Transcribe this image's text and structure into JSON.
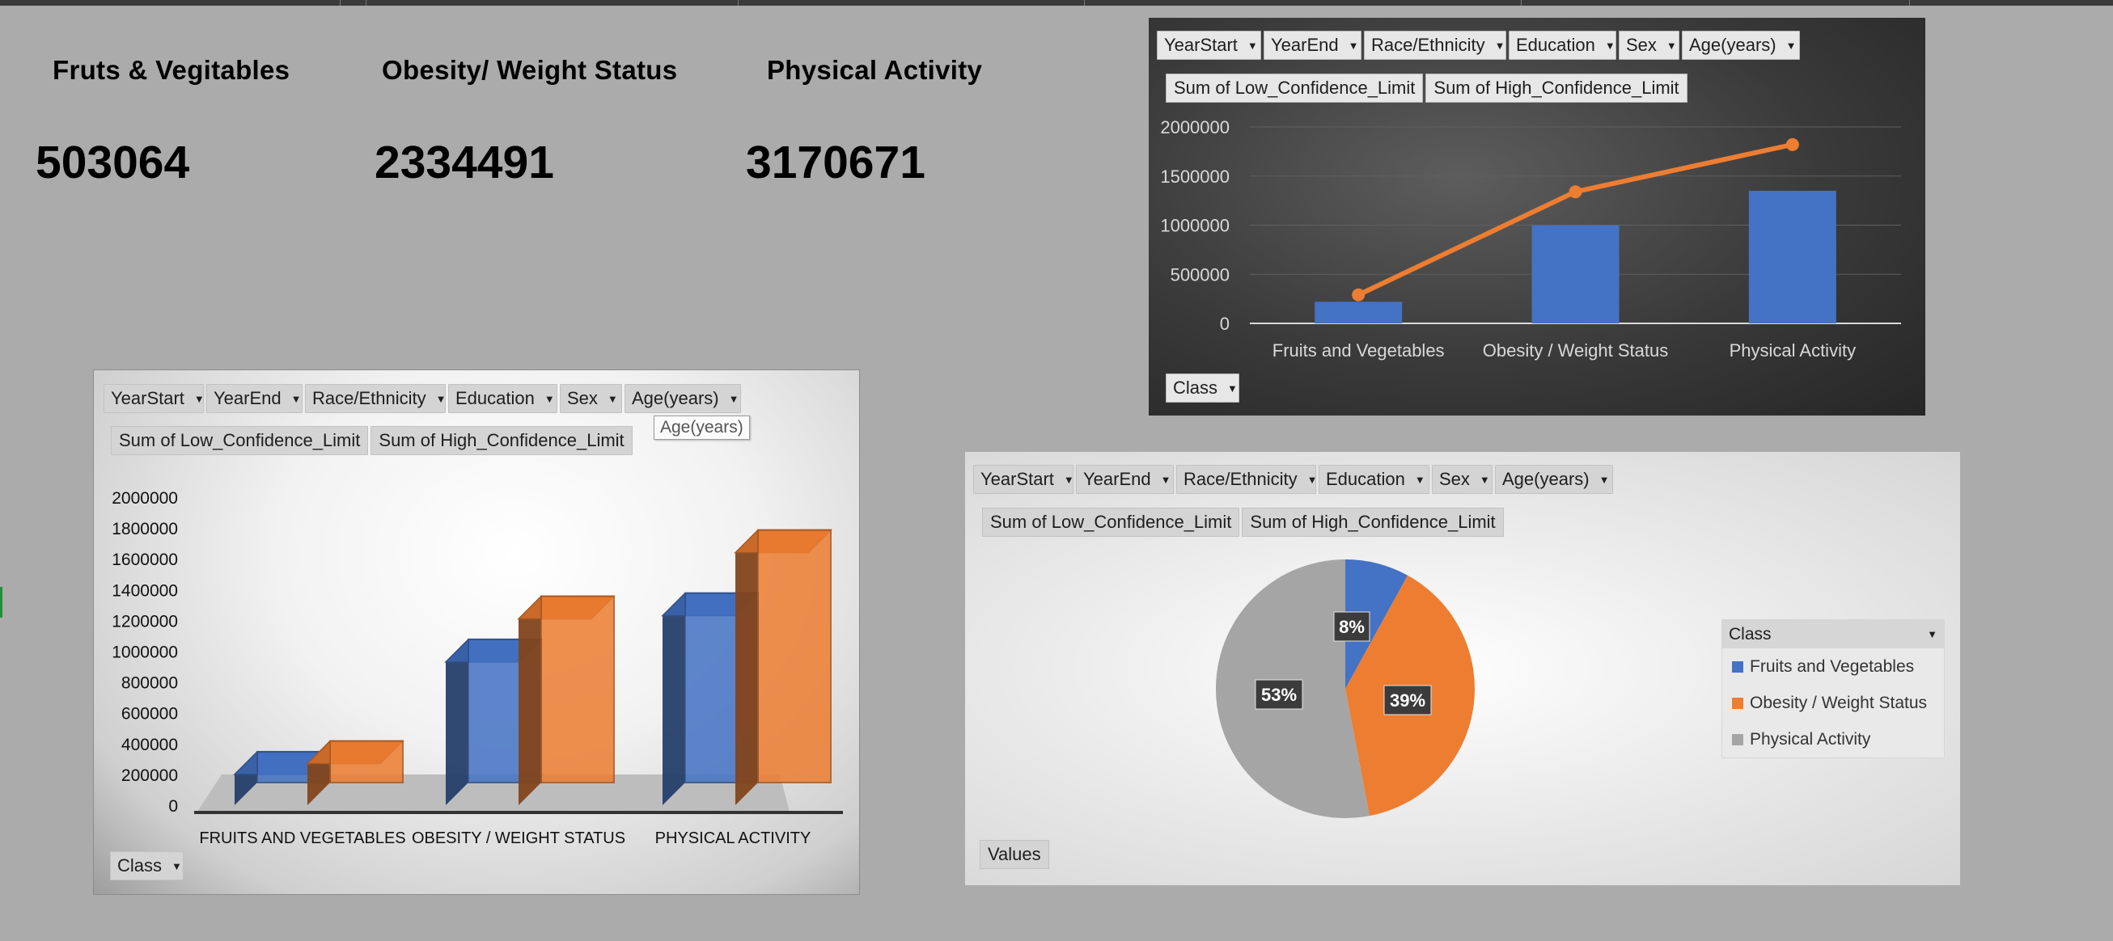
{
  "kpis": [
    {
      "title": "Fruts & Vegitables",
      "value": "503064"
    },
    {
      "title": "Obesity/ Weight Status",
      "value": "2334491"
    },
    {
      "title": "Physical Activity",
      "value": "3170671"
    }
  ],
  "filters": {
    "year_start": "YearStart",
    "year_end": "YearEnd",
    "race": "Race/Ethnicity",
    "education": "Education",
    "sex": "Sex",
    "age": "Age(years)"
  },
  "values_fields": {
    "low": "Sum of Low_Confidence_Limit",
    "high": "Sum of High_Confidence_Limit"
  },
  "axis_button": "Class",
  "values_button": "Values",
  "tooltip": "Age(years)",
  "legend": {
    "title": "Class",
    "items": [
      "Fruits and Vegetables",
      "Obesity / Weight Status",
      "Physical Activity"
    ]
  },
  "colors": {
    "blue": "#4472c4",
    "orange": "#ed7d31",
    "gray": "#a5a5a5"
  },
  "chart_data": [
    {
      "type": "bar",
      "categories": [
        "Fruits and Vegetables",
        "Obesity / Weight Status",
        "Physical Activity"
      ],
      "series": [
        {
          "name": "Sum of Low_Confidence_Limit",
          "type": "bar",
          "values": [
            220000,
            1000000,
            1350000
          ]
        },
        {
          "name": "Sum of High_Confidence_Limit",
          "type": "line",
          "values": [
            290000,
            1340000,
            1820000
          ]
        }
      ],
      "y_ticks": [
        "0",
        "500000",
        "1000000",
        "1500000",
        "2000000"
      ],
      "ylim": [
        0,
        2000000
      ],
      "grid": true,
      "legend": "none"
    },
    {
      "type": "bar",
      "categories": [
        "FRUITS AND VEGETABLES",
        "OBESITY / WEIGHT STATUS",
        "PHYSICAL ACTIVITY"
      ],
      "series": [
        {
          "name": "Sum of Low_Confidence_Limit",
          "values": [
            200000,
            930000,
            1230000
          ]
        },
        {
          "name": "Sum of High_Confidence_Limit",
          "values": [
            270000,
            1210000,
            1640000
          ]
        }
      ],
      "y_ticks": [
        "0",
        "200000",
        "400000",
        "600000",
        "800000",
        "1000000",
        "1200000",
        "1400000",
        "1600000",
        "1800000",
        "2000000"
      ],
      "ylim": [
        0,
        2000000
      ],
      "grid": false,
      "legend": "none"
    },
    {
      "type": "pie",
      "categories": [
        "Fruits and Vegetables",
        "Obesity / Weight Status",
        "Physical Activity"
      ],
      "values": [
        8,
        39,
        53
      ],
      "labels": [
        "8%",
        "39%",
        "53%"
      ],
      "legend": "right"
    }
  ]
}
